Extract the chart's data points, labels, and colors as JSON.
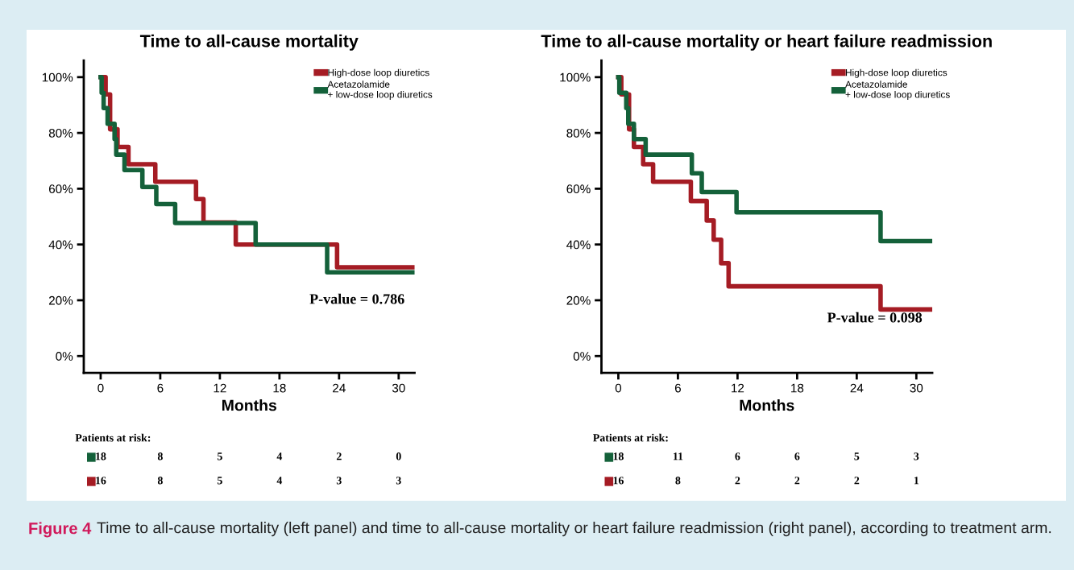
{
  "chart_data": [
    {
      "type": "step",
      "title": "Time to all-cause mortality",
      "xlabel": "Months",
      "xlim": [
        -1.7,
        31.6
      ],
      "ylim": [
        -6,
        106
      ],
      "xticks": [
        0,
        6,
        12,
        18,
        24,
        30
      ],
      "yticks": [
        {
          "value": 0,
          "label": "0%"
        },
        {
          "value": 20,
          "label": "20%"
        },
        {
          "value": 40,
          "label": "40%"
        },
        {
          "value": 60,
          "label": "60%"
        },
        {
          "value": 80,
          "label": "80%"
        },
        {
          "value": 100,
          "label": "100%"
        }
      ],
      "grid": false,
      "legend": "top right",
      "marker": "none",
      "line_style": "solid",
      "series": [
        {
          "name": "High-dose loop diuretics",
          "color": "#a51c24",
          "x": [
            0,
            0.5,
            0.95,
            1.7,
            2.8,
            5.5,
            9.6,
            10.35,
            13.6,
            23.8,
            31.5
          ],
          "values": [
            100,
            93.8,
            81.3,
            75,
            68.8,
            62.5,
            56.3,
            47.9,
            40,
            31.8,
            31.8
          ]
        },
        {
          "name": "Acetazolamide\n+ low-dose loop diuretics",
          "color": "#14613a",
          "x": [
            0,
            0.1,
            0.3,
            0.7,
            1.4,
            1.57,
            2.4,
            4.2,
            5.6,
            7.5,
            15.6,
            22.8,
            31.5
          ],
          "values": [
            100,
            94.4,
            88.9,
            83.3,
            77.8,
            72.2,
            66.7,
            60.6,
            54.5,
            47.7,
            40,
            30,
            30
          ]
        }
      ],
      "annotations": [
        "P-value = 0.786",
        "Patients at risk:",
        "18",
        "8",
        "5",
        "4",
        "2",
        "0",
        "16",
        "8",
        "5",
        "4",
        "3",
        "3",
        "Figure 4",
        "Time to all-cause mortality (left panel) and time to all-cause mortality or heart failure readmission (right panel), according to treatment arm."
      ]
    },
    {
      "type": "step",
      "title": "Time to all-cause mortality or heart failure readmission",
      "xlabel": "Months",
      "xlim": [
        -1.7,
        31.6
      ],
      "ylim": [
        -6,
        106
      ],
      "xticks": [
        0,
        6,
        12,
        18,
        24,
        30
      ],
      "yticks": [
        {
          "value": 0,
          "label": "0%"
        },
        {
          "value": 20,
          "label": "20%"
        },
        {
          "value": 40,
          "label": "40%"
        },
        {
          "value": 60,
          "label": "60%"
        },
        {
          "value": 80,
          "label": "80%"
        },
        {
          "value": 100,
          "label": "100%"
        }
      ],
      "grid": false,
      "legend": "top right",
      "marker": "none",
      "line_style": "solid",
      "series": [
        {
          "name": "High-dose loop diuretics",
          "color": "#a51c24",
          "x": [
            0,
            0.3,
            1.08,
            1.57,
            2.5,
            3.5,
            7.3,
            8.9,
            9.6,
            10.35,
            11.1,
            26.4,
            31.5
          ],
          "values": [
            100,
            93.8,
            81.3,
            75,
            68.8,
            62.5,
            55.6,
            48.6,
            41.7,
            33.3,
            25,
            16.7,
            16.7
          ]
        },
        {
          "name": "Acetazolamide\n+ low-dose loop diuretics",
          "color": "#14613a",
          "x": [
            0,
            0.1,
            0.8,
            1.0,
            1.57,
            2.75,
            7.4,
            8.4,
            11.9,
            26.4,
            31.5
          ],
          "values": [
            100,
            94.4,
            88.9,
            83.3,
            77.8,
            72.2,
            65.5,
            58.8,
            51.5,
            41.2,
            41.2
          ]
        }
      ],
      "annotations": [
        "P-value = 0.098",
        "Patients at risk:",
        "18",
        "11",
        "6",
        "6",
        "5",
        "3",
        "16",
        "8",
        "2",
        "2",
        "2",
        "1"
      ]
    }
  ]
}
